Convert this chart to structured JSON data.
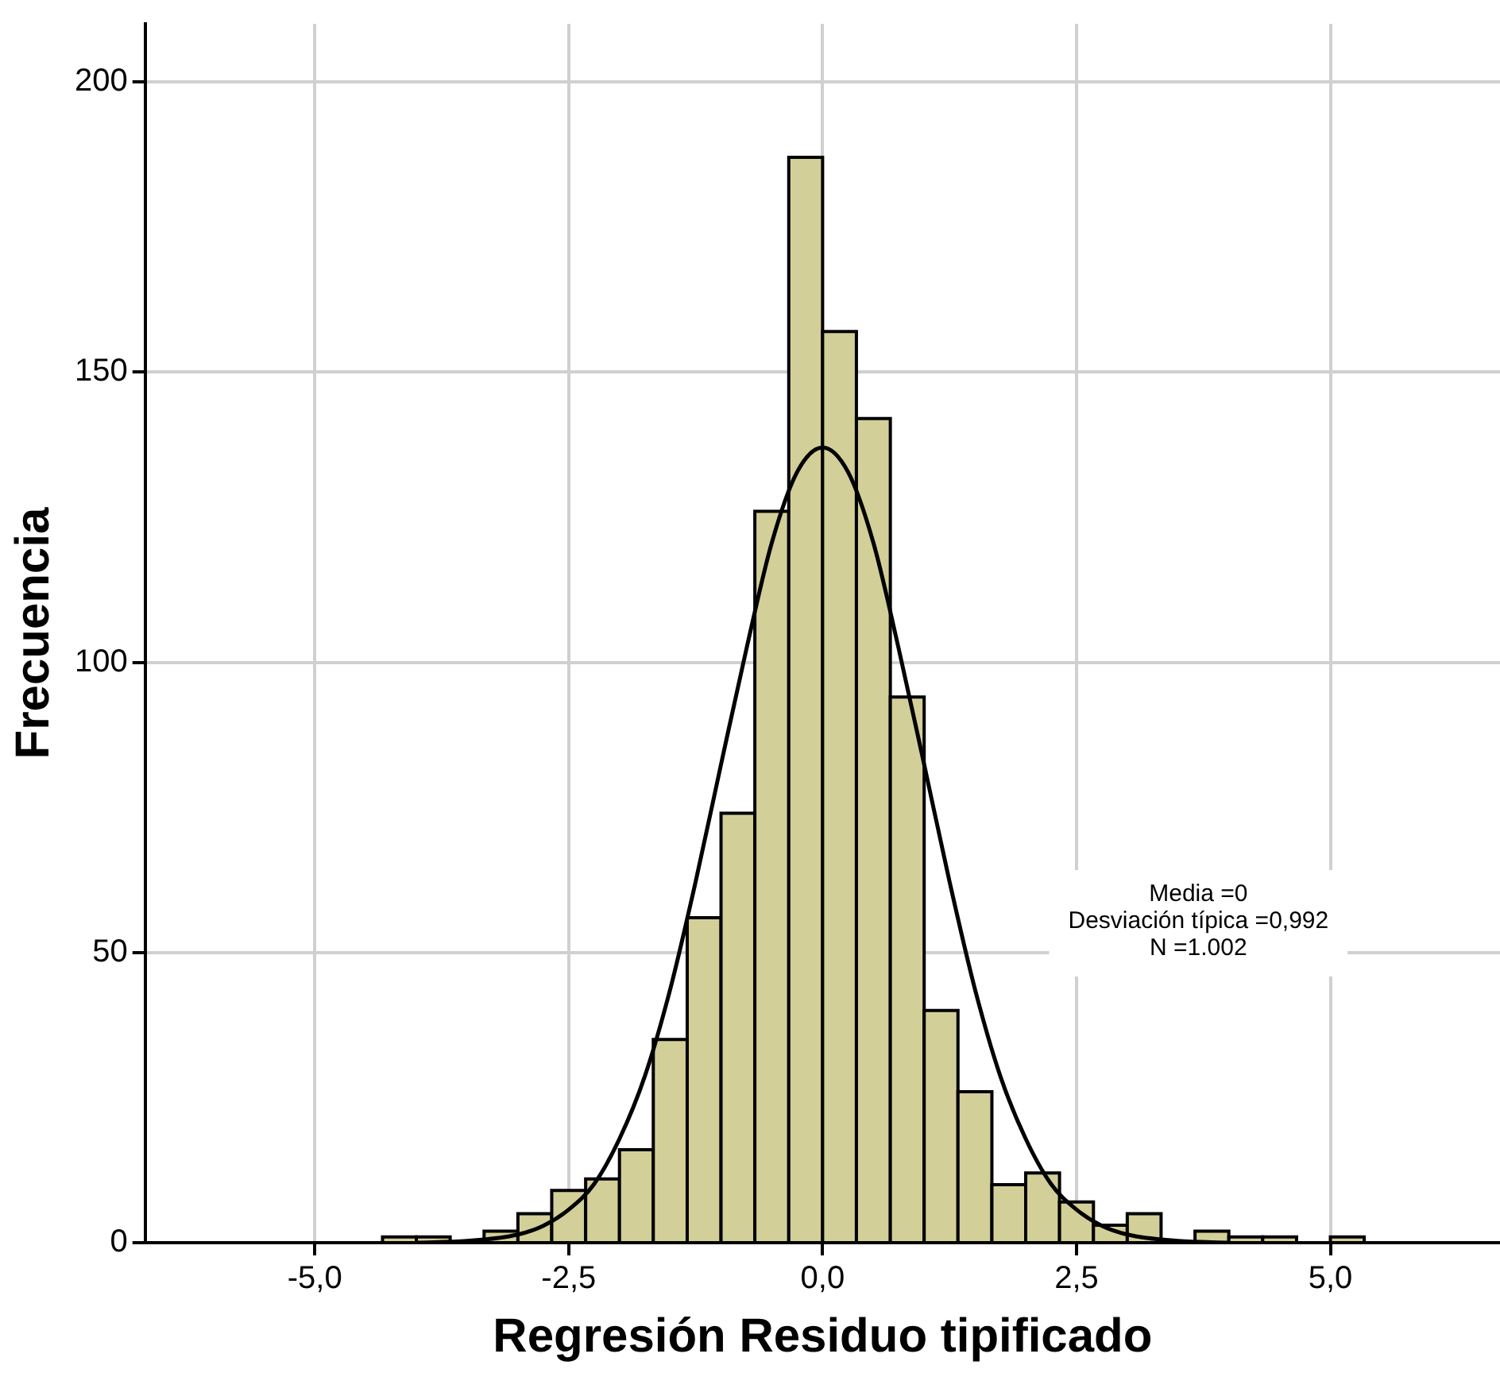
{
  "chart_data": {
    "type": "histogram",
    "xlabel": "Regresión Residuo tipificado",
    "ylabel": "Frecuencia",
    "bins": [
      -4.333,
      -4,
      -3.667,
      -3.333,
      -3,
      -2.667,
      -2.333,
      -2,
      -1.667,
      -1.333,
      -1,
      -0.667,
      -0.333,
      0,
      0.333,
      0.667,
      1,
      1.333,
      1.667,
      2,
      2.333,
      2.667,
      3,
      3.333,
      3.667,
      4,
      4.333,
      4.667,
      5,
      5.333
    ],
    "values": [
      1,
      1,
      0,
      2,
      5,
      9,
      11,
      16,
      35,
      56,
      74,
      126,
      187,
      157,
      142,
      94,
      40,
      26,
      10,
      12,
      7,
      3,
      5,
      0,
      2,
      1,
      1,
      0,
      1
    ],
    "color": "#d3cf98",
    "series": [
      {
        "type": "line",
        "color": "#000000",
        "x": [
          -4,
          -3.5,
          -3,
          -2.75,
          -2.5,
          -2.25,
          -2,
          -1.75,
          -1.5,
          -1.25,
          -1,
          -0.75,
          -0.5,
          -0.25,
          0,
          0.25,
          0.5,
          0.75,
          1,
          1.25,
          1.5,
          1.75,
          2,
          2.25,
          2.5,
          2.75,
          3,
          3.5,
          4
        ],
        "values": [
          0,
          0.3,
          1.4,
          2.9,
          5.7,
          10.1,
          17.9,
          28.7,
          43.7,
          62.2,
          82.4,
          102.3,
          120.6,
          132.8,
          137,
          132.8,
          120.6,
          102.3,
          82.4,
          62.2,
          43.7,
          28.7,
          17.9,
          10.1,
          5.7,
          2.9,
          1.4,
          0.3,
          0
        ]
      }
    ],
    "annotations": [
      "Media =0",
      "Desviación típica =0,992",
      "N =1.002"
    ],
    "xlim": [
      -6.67,
      6.67
    ],
    "ylim": [
      0,
      210
    ],
    "xticks": [
      {
        "value": -5,
        "label": "-5,0"
      },
      {
        "value": -2.5,
        "label": "-2,5"
      },
      {
        "value": 0,
        "label": "0,0"
      },
      {
        "value": 2.5,
        "label": "2,5"
      },
      {
        "value": 5,
        "label": "5,0"
      }
    ],
    "yticks": [
      0,
      50,
      100,
      150,
      200
    ],
    "grid": true,
    "legend": false,
    "marker": "none",
    "line_style": "solid"
  }
}
